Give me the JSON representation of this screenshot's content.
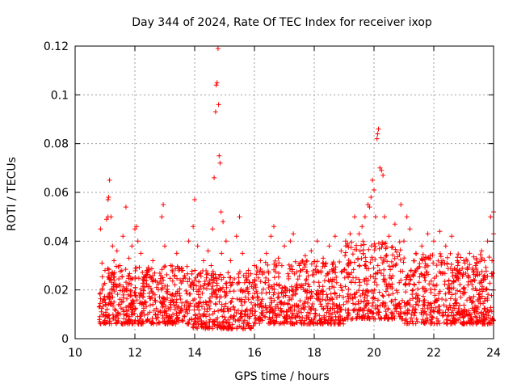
{
  "chart_data": {
    "type": "scatter",
    "title": "Day 344 of 2024, Rate Of TEC Index for receiver ixop",
    "xlabel": "GPS time / hours",
    "ylabel": "ROTI / TECUs",
    "xlim": [
      10,
      24
    ],
    "ylim": [
      0,
      0.12
    ],
    "x_ticks": [
      10,
      12,
      14,
      16,
      18,
      20,
      22,
      24
    ],
    "x_tick_labels": [
      "10",
      "12",
      "14",
      "16",
      "18",
      "20",
      "22",
      "24"
    ],
    "y_ticks": [
      0,
      0.02,
      0.04,
      0.06,
      0.08,
      0.1,
      0.12
    ],
    "y_tick_labels": [
      "0",
      "0.02",
      "0.04",
      "0.06",
      "0.08",
      "0.1",
      "0.12"
    ],
    "grid": true,
    "marker": "+",
    "series": [
      {
        "name": "ROTI",
        "color": "#ff0000",
        "points": [
          [
            10.85,
            0.045
          ],
          [
            10.9,
            0.031
          ],
          [
            10.95,
            0.022
          ],
          [
            11.0,
            0.028
          ],
          [
            11.05,
            0.049
          ],
          [
            11.1,
            0.05
          ],
          [
            11.1,
            0.057
          ],
          [
            11.12,
            0.058
          ],
          [
            11.15,
            0.065
          ],
          [
            11.2,
            0.05
          ],
          [
            11.25,
            0.038
          ],
          [
            11.3,
            0.032
          ],
          [
            11.4,
            0.036
          ],
          [
            11.5,
            0.03
          ],
          [
            11.6,
            0.042
          ],
          [
            11.7,
            0.054
          ],
          [
            11.8,
            0.033
          ],
          [
            11.9,
            0.038
          ],
          [
            12.0,
            0.045
          ],
          [
            12.05,
            0.046
          ],
          [
            12.1,
            0.04
          ],
          [
            12.2,
            0.035
          ],
          [
            12.4,
            0.028
          ],
          [
            12.6,
            0.032
          ],
          [
            12.9,
            0.05
          ],
          [
            12.95,
            0.055
          ],
          [
            13.0,
            0.038
          ],
          [
            13.2,
            0.03
          ],
          [
            13.4,
            0.035
          ],
          [
            13.6,
            0.028
          ],
          [
            13.8,
            0.04
          ],
          [
            13.95,
            0.046
          ],
          [
            14.0,
            0.057
          ],
          [
            14.1,
            0.038
          ],
          [
            14.3,
            0.032
          ],
          [
            14.45,
            0.036
          ],
          [
            14.55,
            0.03
          ],
          [
            14.6,
            0.045
          ],
          [
            14.65,
            0.066
          ],
          [
            14.7,
            0.093
          ],
          [
            14.72,
            0.104
          ],
          [
            14.75,
            0.105
          ],
          [
            14.78,
            0.119
          ],
          [
            14.8,
            0.096
          ],
          [
            14.82,
            0.075
          ],
          [
            14.85,
            0.072
          ],
          [
            14.88,
            0.052
          ],
          [
            14.9,
            0.035
          ],
          [
            14.95,
            0.048
          ],
          [
            15.05,
            0.04
          ],
          [
            15.2,
            0.032
          ],
          [
            15.4,
            0.042
          ],
          [
            15.5,
            0.05
          ],
          [
            15.6,
            0.035
          ],
          [
            15.8,
            0.028
          ],
          [
            16.0,
            0.03
          ],
          [
            16.2,
            0.032
          ],
          [
            16.4,
            0.035
          ],
          [
            16.55,
            0.042
          ],
          [
            16.65,
            0.046
          ],
          [
            16.8,
            0.033
          ],
          [
            17.0,
            0.038
          ],
          [
            17.2,
            0.04
          ],
          [
            17.3,
            0.043
          ],
          [
            17.5,
            0.03
          ],
          [
            17.7,
            0.034
          ],
          [
            17.9,
            0.036
          ],
          [
            18.1,
            0.04
          ],
          [
            18.3,
            0.033
          ],
          [
            18.5,
            0.038
          ],
          [
            18.7,
            0.042
          ],
          [
            18.9,
            0.036
          ],
          [
            19.05,
            0.04
          ],
          [
            19.2,
            0.043
          ],
          [
            19.35,
            0.05
          ],
          [
            19.5,
            0.043
          ],
          [
            19.6,
            0.046
          ],
          [
            19.7,
            0.05
          ],
          [
            19.8,
            0.055
          ],
          [
            19.85,
            0.054
          ],
          [
            19.9,
            0.058
          ],
          [
            19.95,
            0.065
          ],
          [
            20.0,
            0.061
          ],
          [
            20.05,
            0.05
          ],
          [
            20.1,
            0.082
          ],
          [
            20.12,
            0.084
          ],
          [
            20.15,
            0.086
          ],
          [
            20.2,
            0.07
          ],
          [
            20.25,
            0.069
          ],
          [
            20.3,
            0.067
          ],
          [
            20.35,
            0.05
          ],
          [
            20.5,
            0.042
          ],
          [
            20.7,
            0.047
          ],
          [
            20.9,
            0.055
          ],
          [
            21.0,
            0.04
          ],
          [
            21.1,
            0.05
          ],
          [
            21.2,
            0.045
          ],
          [
            21.4,
            0.035
          ],
          [
            21.6,
            0.038
          ],
          [
            21.8,
            0.043
          ],
          [
            22.0,
            0.04
          ],
          [
            22.2,
            0.044
          ],
          [
            22.4,
            0.038
          ],
          [
            22.6,
            0.042
          ],
          [
            22.8,
            0.03
          ],
          [
            23.0,
            0.032
          ],
          [
            23.2,
            0.035
          ],
          [
            23.4,
            0.03
          ],
          [
            23.6,
            0.036
          ],
          [
            23.8,
            0.04
          ],
          [
            23.9,
            0.05
          ],
          [
            24.0,
            0.052
          ],
          [
            24.0,
            0.043
          ],
          [
            23.95,
            0.032
          ],
          [
            11.3,
            0.015
          ],
          [
            11.6,
            0.012
          ],
          [
            12.2,
            0.018
          ],
          [
            12.6,
            0.014
          ],
          [
            13.0,
            0.011
          ],
          [
            13.4,
            0.016
          ],
          [
            13.8,
            0.013
          ],
          [
            14.2,
            0.009
          ],
          [
            14.5,
            0.005
          ],
          [
            14.9,
            0.012
          ],
          [
            15.3,
            0.008
          ],
          [
            15.7,
            0.017
          ],
          [
            16.1,
            0.014
          ],
          [
            16.5,
            0.019
          ],
          [
            16.9,
            0.015
          ],
          [
            17.3,
            0.02
          ],
          [
            17.7,
            0.013
          ],
          [
            18.1,
            0.018
          ],
          [
            18.5,
            0.016
          ],
          [
            18.9,
            0.021
          ],
          [
            19.3,
            0.025
          ],
          [
            19.7,
            0.03
          ],
          [
            20.1,
            0.022
          ],
          [
            20.5,
            0.018
          ],
          [
            20.9,
            0.024
          ],
          [
            21.3,
            0.02
          ],
          [
            21.7,
            0.026
          ],
          [
            22.1,
            0.022
          ],
          [
            22.5,
            0.019
          ],
          [
            22.9,
            0.017
          ],
          [
            23.3,
            0.015
          ],
          [
            23.7,
            0.012
          ],
          [
            24.0,
            0.02
          ]
        ]
      }
    ],
    "point_cloud": {
      "description_values": "dense band of ROTI samples between 0.005 and 0.035 TECUs",
      "x_range": [
        10.8,
        24.0
      ],
      "base_ranges": [
        {
          "x": [
            10.8,
            13.9
          ],
          "y": [
            0.006,
            0.03
          ]
        },
        {
          "x": [
            13.9,
            16.0
          ],
          "y": [
            0.004,
            0.028
          ]
        },
        {
          "x": [
            16.0,
            19.0
          ],
          "y": [
            0.006,
            0.032
          ]
        },
        {
          "x": [
            19.0,
            21.0
          ],
          "y": [
            0.008,
            0.04
          ]
        },
        {
          "x": [
            21.0,
            24.0
          ],
          "y": [
            0.006,
            0.035
          ]
        }
      ],
      "count": 2200
    }
  }
}
